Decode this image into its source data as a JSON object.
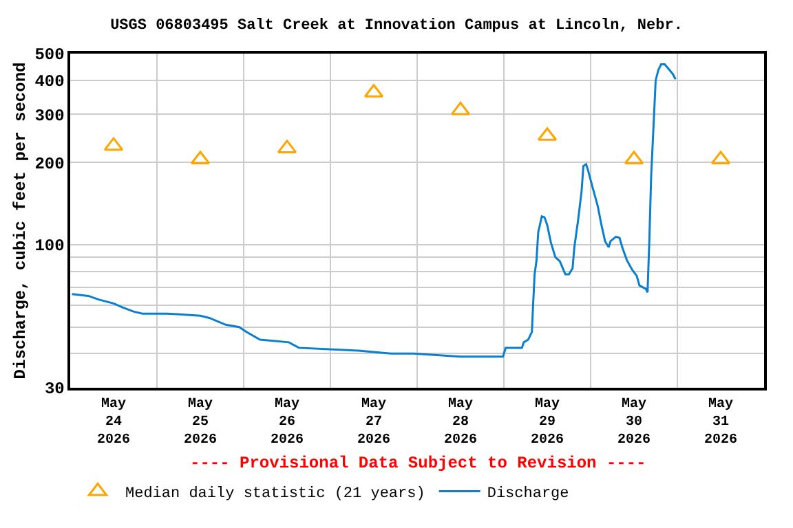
{
  "chart_data": {
    "type": "line",
    "title": "USGS 06803495 Salt Creek at Innovation Campus at Lincoln, Nebr.",
    "ylabel": "Discharge, cubic feet per second",
    "annotations": [
      "---- Provisional Data Subject to Revision ----"
    ],
    "log": "y",
    "grid": true,
    "legend": "bottom",
    "xlim": [
      "2026-05-24",
      "2026-06-01"
    ],
    "xticks": [
      {
        "value": "2026-05-24T12:00",
        "label": "May\n24\n2026"
      },
      {
        "value": "2026-05-25T12:00",
        "label": "May\n25\n2026"
      },
      {
        "value": "2026-05-26T12:00",
        "label": "May\n26\n2026"
      },
      {
        "value": "2026-05-27T12:00",
        "label": "May\n27\n2026"
      },
      {
        "value": "2026-05-28T12:00",
        "label": "May\n28\n2026"
      },
      {
        "value": "2026-05-29T12:00",
        "label": "May\n29\n2026"
      },
      {
        "value": "2026-05-30T12:00",
        "label": "May\n30\n2026"
      },
      {
        "value": "2026-05-31T12:00",
        "label": "May\n31\n2026"
      },
      {
        "value": "2026-05-25",
        "label": null
      },
      {
        "value": "2026-05-26",
        "label": null
      },
      {
        "value": "2026-05-27",
        "label": null
      },
      {
        "value": "2026-05-28",
        "label": null
      },
      {
        "value": "2026-05-29",
        "label": null
      },
      {
        "value": "2026-05-30",
        "label": null
      },
      {
        "value": "2026-05-31",
        "label": null
      }
    ],
    "ylim": [
      30,
      500
    ],
    "yticks": [
      30,
      {
        "value": 40,
        "label": null
      },
      {
        "value": 50,
        "label": null
      },
      {
        "value": 60,
        "label": null
      },
      {
        "value": 70,
        "label": null
      },
      {
        "value": 80,
        "label": null
      },
      {
        "value": 90,
        "label": null
      },
      100,
      200,
      300,
      400,
      500
    ],
    "series": [
      {
        "name": "Median daily statistic (21 years)",
        "type": "scatter",
        "marker": "triangle",
        "color": "#ffa500",
        "x": [
          "2026-05-24T12:00",
          "2026-05-25T12:00",
          "2026-05-26T12:00",
          "2026-05-27T12:00",
          "2026-05-28T12:00",
          "2026-05-29T12:00",
          "2026-05-30T12:00",
          "2026-05-31T12:00"
        ],
        "values": [
          230,
          205,
          225,
          360,
          310,
          250,
          205,
          205
        ]
      },
      {
        "name": "Discharge",
        "marker": "none",
        "color": "#0a7fcf",
        "x": [
          "2026-05-24T00:30",
          "2026-05-24T05:00",
          "2026-05-24T08:00",
          "2026-05-24T12:00",
          "2026-05-24T14:30",
          "2026-05-24T17:30",
          "2026-05-24T20:00",
          "2026-05-25T03:00",
          "2026-05-25T12:00",
          "2026-05-25T14:30",
          "2026-05-25T19:00",
          "2026-05-25T22:45",
          "2026-05-26T00:45",
          "2026-05-26T04:30",
          "2026-05-26T12:30",
          "2026-05-26T15:15",
          "2026-05-27T07:45",
          "2026-05-27T16:45",
          "2026-05-27T23:00",
          "2026-05-28T12:00",
          "2026-05-28T23:45",
          "2026-05-29T00:30",
          "2026-05-29T05:00",
          "2026-05-29T05:30",
          "2026-05-29T06:45",
          "2026-05-29T07:45",
          "2026-05-29T08:00",
          "2026-05-29T08:30",
          "2026-05-29T09:00",
          "2026-05-29T09:30",
          "2026-05-29T10:30",
          "2026-05-29T11:15",
          "2026-05-29T12:00",
          "2026-05-29T13:00",
          "2026-05-29T14:15",
          "2026-05-29T15:30",
          "2026-05-29T17:00",
          "2026-05-29T18:00",
          "2026-05-29T19:00",
          "2026-05-29T19:30",
          "2026-05-29T20:30",
          "2026-05-29T21:30",
          "2026-05-29T22:00",
          "2026-05-29T22:45",
          "2026-05-29T23:15",
          "2026-05-30T00:30",
          "2026-05-30T02:00",
          "2026-05-30T03:00",
          "2026-05-30T04:00",
          "2026-05-30T05:00",
          "2026-05-30T05:30",
          "2026-05-30T07:00",
          "2026-05-30T08:00",
          "2026-05-30T08:45",
          "2026-05-30T10:00",
          "2026-05-30T11:30",
          "2026-05-30T12:45",
          "2026-05-30T13:30",
          "2026-05-30T15:15",
          "2026-05-30T15:45",
          "2026-05-30T16:15",
          "2026-05-30T16:45",
          "2026-05-30T17:30",
          "2026-05-30T18:00",
          "2026-05-30T18:45",
          "2026-05-30T19:30",
          "2026-05-30T20:30",
          "2026-05-30T21:30",
          "2026-05-30T22:45",
          "2026-05-30T23:30"
        ],
        "values": [
          66,
          65,
          63,
          61,
          59,
          57,
          56,
          56,
          55,
          54,
          51,
          50,
          48,
          45,
          44,
          42,
          41,
          40,
          40,
          39,
          39,
          42,
          42,
          44,
          45,
          48,
          57,
          78,
          87,
          111,
          127,
          126,
          118,
          102,
          90,
          87,
          78,
          78,
          82,
          98,
          122,
          157,
          194,
          197,
          188,
          163,
          138,
          118,
          103,
          98,
          103,
          107,
          106,
          98,
          88,
          81,
          77,
          71,
          69,
          67,
          104,
          178,
          289,
          399,
          436,
          457,
          457,
          441,
          421,
          403
        ]
      }
    ]
  }
}
